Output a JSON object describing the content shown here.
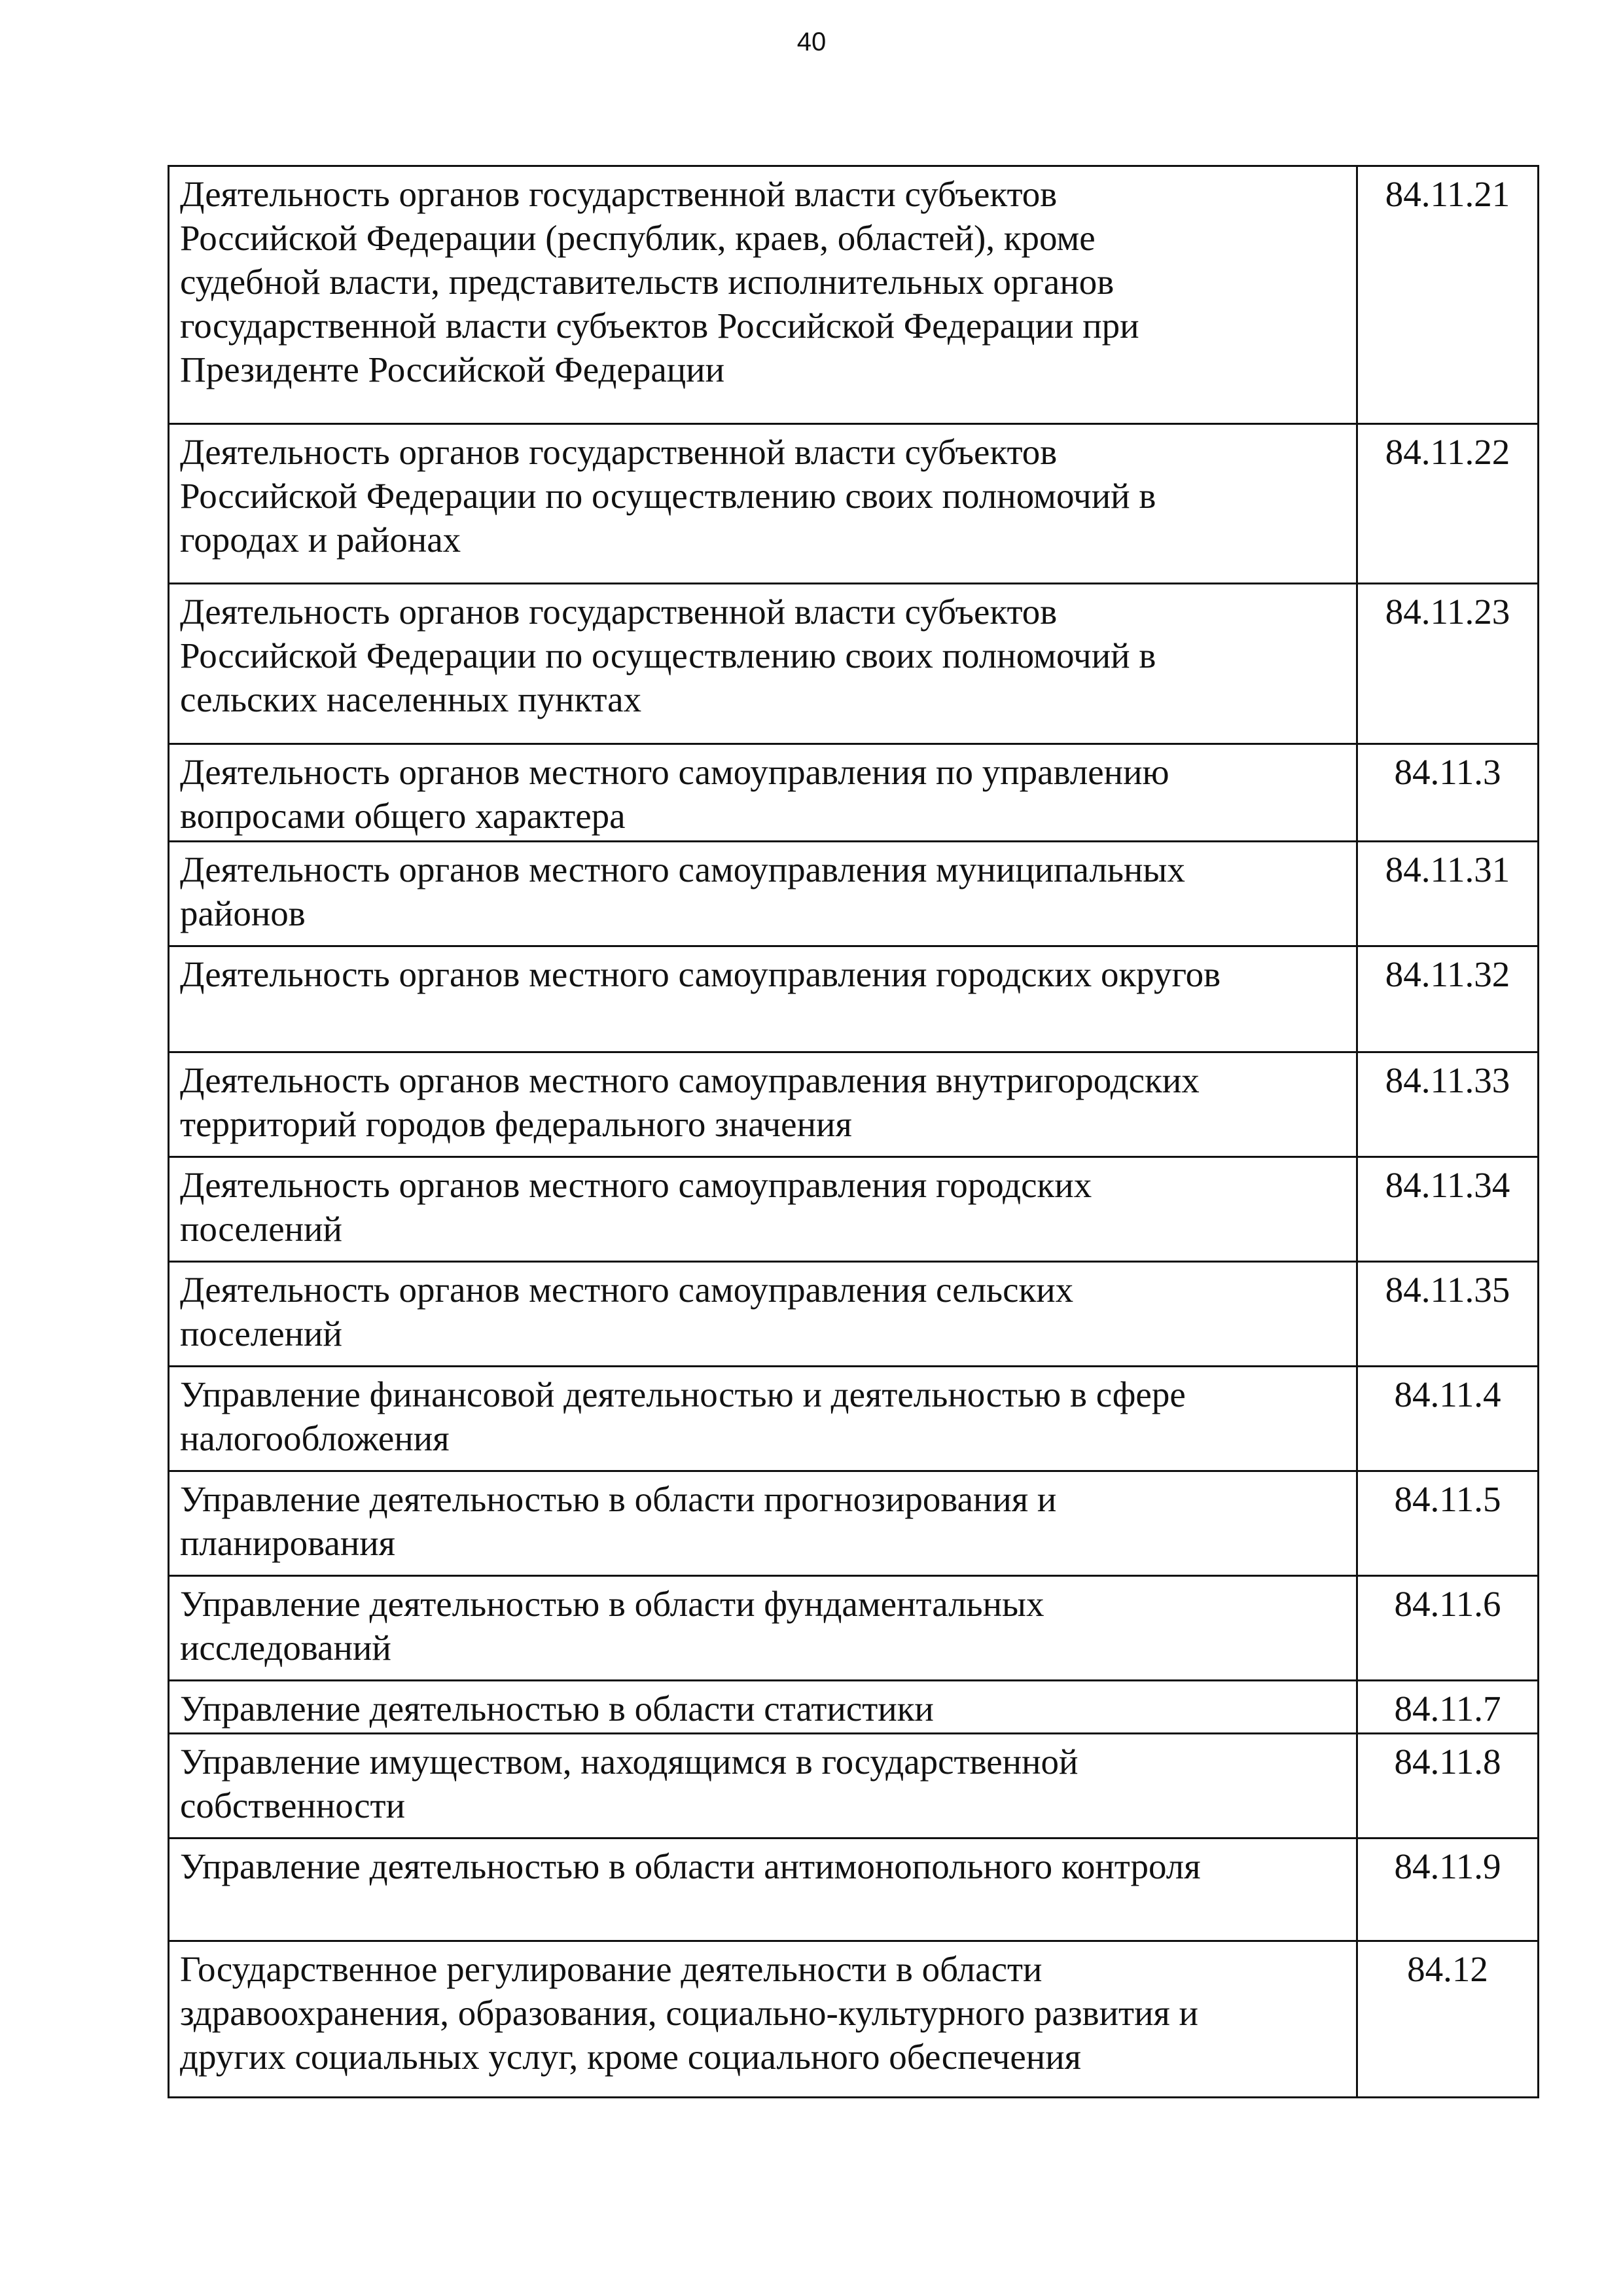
{
  "page_number": "40",
  "rows": [
    {
      "lines": [
        "Деятельность органов государственной власти субъектов",
        "Российской Федерации (республик, краев, областей), кроме",
        "судебной власти, представительств исполнительных органов",
        "государственной власти субъектов Российской Федерации при",
        "Президенте Российской Федерации"
      ],
      "code": "84.11.21"
    },
    {
      "lines": [
        "Деятельность органов государственной власти субъектов",
        "Российской Федерации по осуществлению своих полномочий в",
        "городах и районах"
      ],
      "code": "84.11.22"
    },
    {
      "lines": [
        "Деятельность органов государственной власти субъектов",
        "Российской Федерации по осуществлению своих полномочий в",
        "сельских населенных пунктах"
      ],
      "code": "84.11.23"
    },
    {
      "lines": [
        "Деятельность органов местного самоуправления по управлению",
        "вопросами общего характера"
      ],
      "code": "84.11.3"
    },
    {
      "lines": [
        "Деятельность органов местного самоуправления муниципальных",
        "районов"
      ],
      "code": "84.11.31"
    },
    {
      "lines": [
        "Деятельность органов местного самоуправления городских округов"
      ],
      "code": "84.11.32"
    },
    {
      "lines": [
        "Деятельность органов местного самоуправления внутригородских",
        "территорий городов федерального значения"
      ],
      "code": "84.11.33"
    },
    {
      "lines": [
        "Деятельность органов местного самоуправления городских",
        "поселений"
      ],
      "code": "84.11.34"
    },
    {
      "lines": [
        "Деятельность органов местного самоуправления сельских",
        "поселений"
      ],
      "code": "84.11.35"
    },
    {
      "lines": [
        "Управление финансовой деятельностью и деятельностью в сфере",
        "налогообложения"
      ],
      "code": "84.11.4"
    },
    {
      "lines": [
        "Управление деятельностью в области прогнозирования и",
        "планирования"
      ],
      "code": "84.11.5"
    },
    {
      "lines": [
        "Управление деятельностью в области фундаментальных",
        "исследований"
      ],
      "code": "84.11.6"
    },
    {
      "lines": [
        "Управление деятельностью в области статистики"
      ],
      "code": "84.11.7"
    },
    {
      "lines": [
        "Управление имуществом, находящимся в государственной",
        "собственности"
      ],
      "code": "84.11.8"
    },
    {
      "lines": [
        "Управление деятельностью в области антимонопольного контроля"
      ],
      "code": "84.11.9"
    },
    {
      "lines": [
        "Государственное регулирование деятельности в области",
        "здравоохранения, образования, социально-культурного развития и",
        "других социальных услуг, кроме социального обеспечения"
      ],
      "code": "84.12"
    }
  ]
}
